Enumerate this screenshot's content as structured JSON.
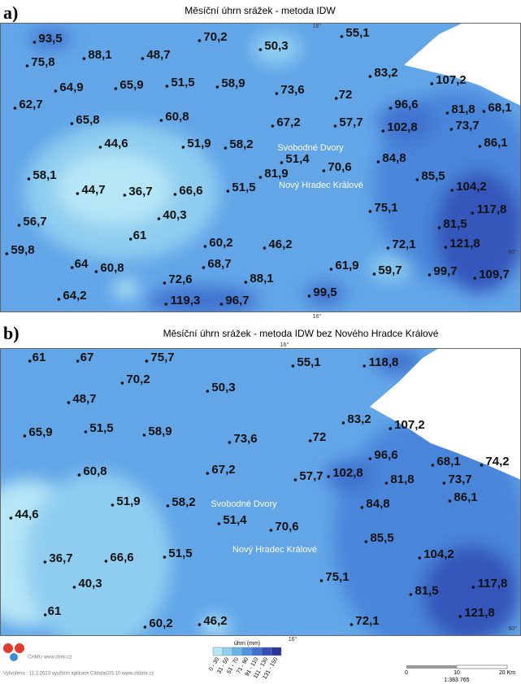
{
  "panels": [
    {
      "letter": "a)",
      "title": "Měsíční úhrn srážek - metoda IDW",
      "stations": [
        "93,5",
        "70,2",
        "50,3",
        "55,1",
        "75,8",
        "88,1",
        "48,7",
        "83,2",
        "107,2",
        "64,9",
        "65,9",
        "51,5",
        "58,9",
        "73,6",
        "72",
        "62,7",
        "96,6",
        "81,8",
        "68,1",
        "65,8",
        "60,8",
        "67,2",
        "57,7",
        "102,8",
        "73,7",
        "86,1",
        "44,6",
        "51,9",
        "58,2",
        "51,4",
        "84,8",
        "70,6",
        "58,1",
        "81,9",
        "85,5",
        "104,2",
        "44,7",
        "36,7",
        "66,6",
        "51,5",
        "75,1",
        "117,8",
        "40,3",
        "56,7",
        "81,5",
        "61",
        "59,8",
        "60,2",
        "46,2",
        "72,1",
        "121,8",
        "64",
        "68,7",
        "60,8",
        "88,1",
        "61,9",
        "59,7",
        "99,7",
        "109,7",
        "72,6",
        "64,2",
        "119,3",
        "96,7",
        "99,5"
      ],
      "places": [
        "Svobodné Dvory",
        "Nový Hradec Králové"
      ],
      "graticule": [
        "16°",
        "16°",
        "50°"
      ]
    },
    {
      "letter": "b)",
      "title": "Měsíční úhrn srážek - metoda IDW bez Nového Hradce Králové",
      "stations": [
        "61",
        "67",
        "75,7",
        "55,1",
        "118,8",
        "70,2",
        "50,3",
        "48,7",
        "83,2",
        "107,2",
        "65,9",
        "51,5",
        "58,9",
        "73,6",
        "72",
        "96,6",
        "68,1",
        "74,2",
        "60,8",
        "67,2",
        "57,7",
        "102,8",
        "81,8",
        "73,7",
        "86,1",
        "51,9",
        "58,2",
        "84,8",
        "44,6",
        "51,4",
        "70,6",
        "85,5",
        "36,7",
        "66,6",
        "51,5",
        "104,2",
        "40,3",
        "75,1",
        "117,8",
        "81,5",
        "121,8",
        "61",
        "60,2",
        "46,2",
        "72,1"
      ],
      "places": [
        "Svobodné Dvory",
        "Nový Hradec Králové"
      ],
      "graticule": [
        "16°",
        "16°",
        "50°"
      ]
    }
  ],
  "legend": {
    "title": "úhrn (mm)",
    "classes": [
      "0 - 30",
      "31 - 50",
      "51 - 70",
      "71 - 90",
      "91 - 110",
      "111 - 130",
      "131 - 150"
    ],
    "colors": [
      "#b8e8f5",
      "#8fcfef",
      "#66b4ea",
      "#4d95e0",
      "#3f72cf",
      "#3450b8",
      "#2a3596"
    ]
  },
  "scale": {
    "ticks": [
      "0",
      "10",
      "20 Km"
    ],
    "ratio": "1:383 765"
  },
  "credits": [
    "ČHMÚ www.chmi.cz",
    "Vytvořeno : 11.2.2013 využitím aplikace ClidataGIS 10 www.clidata.cz"
  ]
}
